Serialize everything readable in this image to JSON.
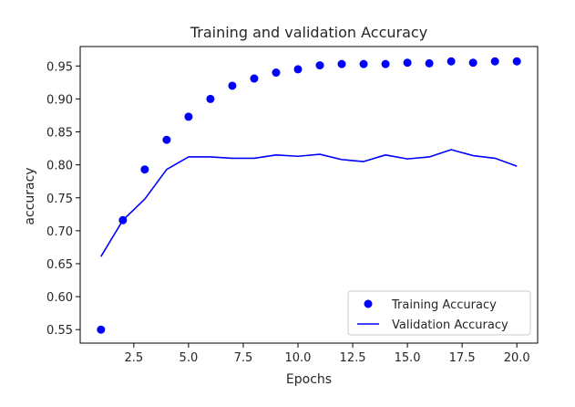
{
  "chart_data": {
    "type": "scatter",
    "title": "Training and validation Accuracy",
    "xlabel": "Epochs",
    "ylabel": "accuracy",
    "xlim": [
      0.05,
      20.95
    ],
    "ylim": [
      0.5295,
      0.9795
    ],
    "grid": false,
    "legend_position": "lower right",
    "x_ticks": [
      2.5,
      5.0,
      7.5,
      10.0,
      12.5,
      15.0,
      17.5,
      20.0
    ],
    "x_tick_labels": [
      "2.5",
      "5.0",
      "7.5",
      "10.0",
      "12.5",
      "15.0",
      "17.5",
      "20.0"
    ],
    "y_ticks": [
      0.55,
      0.6,
      0.65,
      0.7,
      0.75,
      0.8,
      0.85,
      0.9,
      0.95
    ],
    "y_tick_labels": [
      "0.55",
      "0.60",
      "0.65",
      "0.70",
      "0.75",
      "0.80",
      "0.85",
      "0.90",
      "0.95"
    ],
    "x": [
      1,
      2,
      3,
      4,
      5,
      6,
      7,
      8,
      9,
      10,
      11,
      12,
      13,
      14,
      15,
      16,
      17,
      18,
      19,
      20
    ],
    "series": [
      {
        "name": "Training Accuracy",
        "style": "points",
        "color": "#0000ff",
        "values": [
          0.55,
          0.716,
          0.793,
          0.838,
          0.873,
          0.9,
          0.92,
          0.931,
          0.94,
          0.945,
          0.951,
          0.953,
          0.953,
          0.953,
          0.955,
          0.954,
          0.957,
          0.955,
          0.957,
          0.957
        ]
      },
      {
        "name": "Validation Accuracy",
        "style": "line",
        "color": "#0000ff",
        "values": [
          0.661,
          0.716,
          0.748,
          0.793,
          0.812,
          0.812,
          0.81,
          0.81,
          0.815,
          0.813,
          0.816,
          0.808,
          0.805,
          0.815,
          0.809,
          0.812,
          0.823,
          0.814,
          0.81,
          0.798
        ]
      }
    ]
  }
}
